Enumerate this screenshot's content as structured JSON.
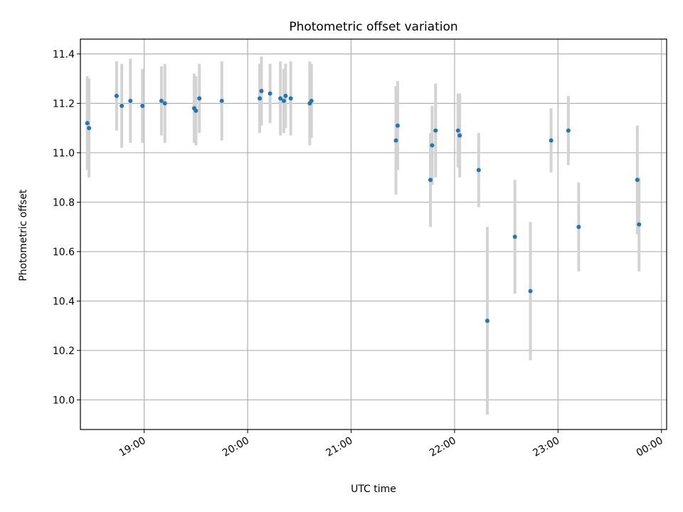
{
  "chart_data": {
    "type": "scatter",
    "title": "Photometric offset variation",
    "xlabel": "UTC time",
    "ylabel": "Photometric offset",
    "x_axis_kind": "time",
    "xlim": [
      "18:23",
      "00:03"
    ],
    "ylim": [
      9.88,
      11.46
    ],
    "grid": true,
    "x_ticks": [
      "19:00",
      "20:00",
      "21:00",
      "22:00",
      "23:00",
      "00:00"
    ],
    "y_ticks": [
      10.0,
      10.2,
      10.4,
      10.6,
      10.8,
      11.0,
      11.2,
      11.4
    ],
    "colors": {
      "points": "#1f77b4",
      "errorbars": "#d3d3d3",
      "grid": "#b0b0b0"
    },
    "points": [
      {
        "x": "18:27",
        "y": 11.12,
        "err": 0.19
      },
      {
        "x": "18:28",
        "y": 11.1,
        "err": 0.2
      },
      {
        "x": "18:44",
        "y": 11.23,
        "err": 0.14
      },
      {
        "x": "18:47",
        "y": 11.19,
        "err": 0.17
      },
      {
        "x": "18:52",
        "y": 11.21,
        "err": 0.17
      },
      {
        "x": "18:59",
        "y": 11.19,
        "err": 0.15
      },
      {
        "x": "19:10",
        "y": 11.21,
        "err": 0.14
      },
      {
        "x": "19:12",
        "y": 11.2,
        "err": 0.16
      },
      {
        "x": "19:29",
        "y": 11.18,
        "err": 0.14
      },
      {
        "x": "19:30",
        "y": 11.17,
        "err": 0.14
      },
      {
        "x": "19:32",
        "y": 11.22,
        "err": 0.14
      },
      {
        "x": "19:45",
        "y": 11.21,
        "err": 0.16
      },
      {
        "x": "20:07",
        "y": 11.22,
        "err": 0.14
      },
      {
        "x": "20:08",
        "y": 11.25,
        "err": 0.14
      },
      {
        "x": "20:13",
        "y": 11.24,
        "err": 0.12
      },
      {
        "x": "20:19",
        "y": 11.22,
        "err": 0.15
      },
      {
        "x": "20:21",
        "y": 11.21,
        "err": 0.13
      },
      {
        "x": "20:22",
        "y": 11.23,
        "err": 0.13
      },
      {
        "x": "20:25",
        "y": 11.22,
        "err": 0.15
      },
      {
        "x": "20:36",
        "y": 11.2,
        "err": 0.17
      },
      {
        "x": "20:37",
        "y": 11.21,
        "err": 0.15
      },
      {
        "x": "21:26",
        "y": 11.05,
        "err": 0.22
      },
      {
        "x": "21:27",
        "y": 11.11,
        "err": 0.18
      },
      {
        "x": "21:46",
        "y": 10.89,
        "err": 0.19
      },
      {
        "x": "21:47",
        "y": 11.03,
        "err": 0.16
      },
      {
        "x": "21:49",
        "y": 11.09,
        "err": 0.19
      },
      {
        "x": "22:02",
        "y": 11.09,
        "err": 0.15
      },
      {
        "x": "22:03",
        "y": 11.07,
        "err": 0.17
      },
      {
        "x": "22:14",
        "y": 10.93,
        "err": 0.15
      },
      {
        "x": "22:19",
        "y": 10.32,
        "err": 0.38
      },
      {
        "x": "22:35",
        "y": 10.66,
        "err": 0.23
      },
      {
        "x": "22:44",
        "y": 10.44,
        "err": 0.28
      },
      {
        "x": "22:56",
        "y": 11.05,
        "err": 0.13
      },
      {
        "x": "23:06",
        "y": 11.09,
        "err": 0.14
      },
      {
        "x": "23:12",
        "y": 10.7,
        "err": 0.18
      },
      {
        "x": "23:46",
        "y": 10.89,
        "err": 0.22
      },
      {
        "x": "23:47",
        "y": 10.71,
        "err": 0.19
      }
    ]
  }
}
